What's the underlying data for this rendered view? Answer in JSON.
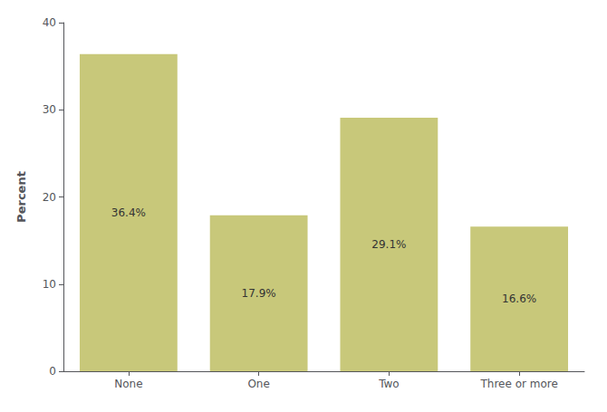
{
  "chart_data": {
    "type": "bar",
    "categories": [
      "None",
      "One",
      "Two",
      "Three or more"
    ],
    "values": [
      36.4,
      17.9,
      29.1,
      16.6
    ],
    "value_labels": [
      "36.4%",
      "17.9%",
      "29.1%",
      "16.6%"
    ],
    "color": "#c8c87a",
    "ylabel": "Percent",
    "ylim": [
      0,
      40
    ],
    "yticks": [
      0,
      10,
      20,
      30,
      40
    ],
    "grid": false,
    "data_labels": true
  }
}
